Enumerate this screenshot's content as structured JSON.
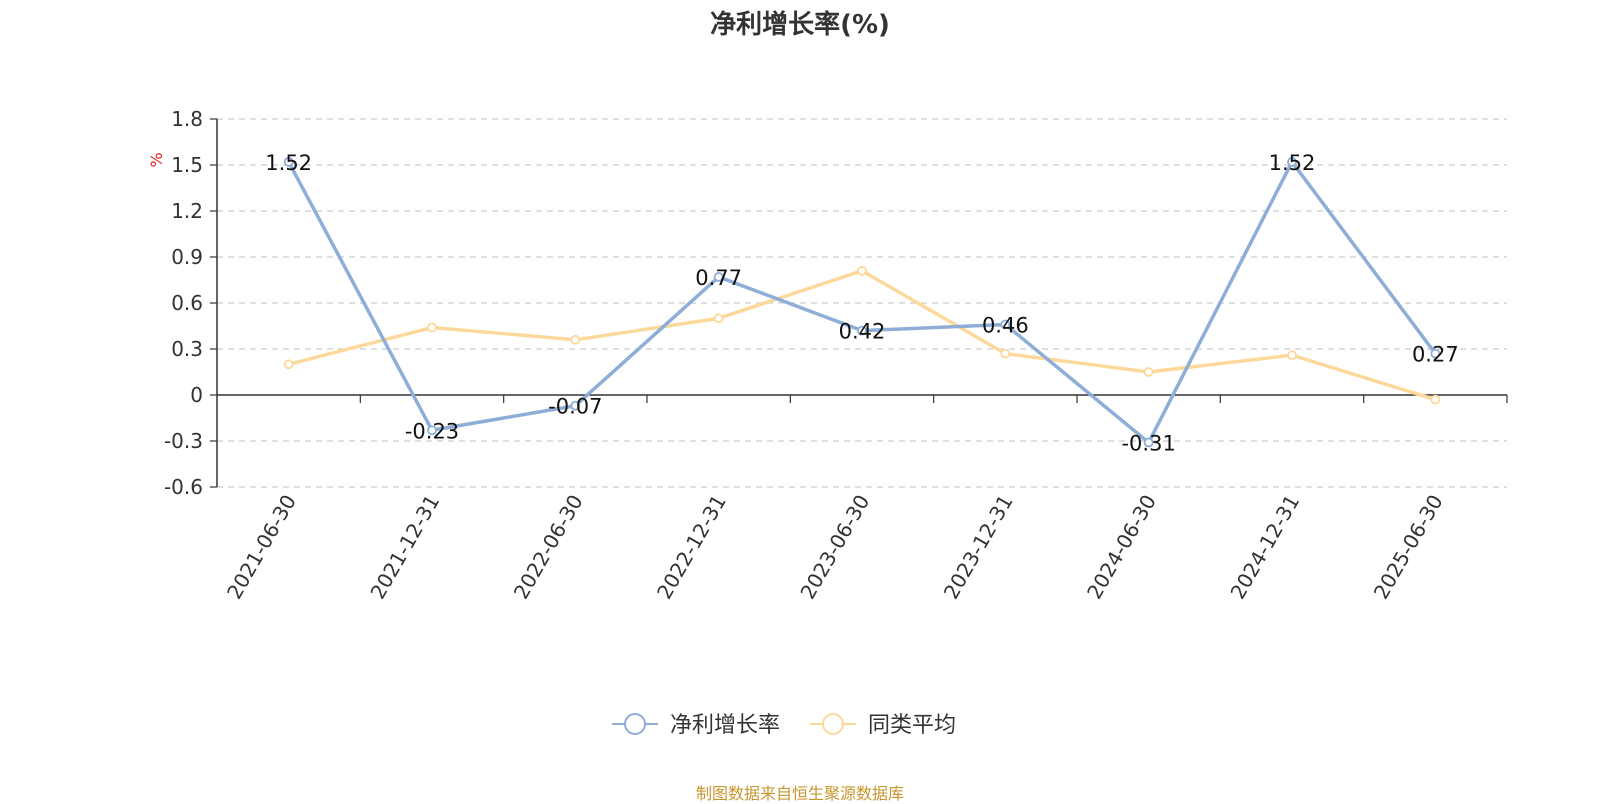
{
  "chart_data": {
    "type": "line",
    "title": "净利增长率(%)",
    "ylabel": "%",
    "categories": [
      "2021-06-30",
      "2021-12-31",
      "2022-06-30",
      "2022-12-31",
      "2023-06-30",
      "2023-12-31",
      "2024-06-30",
      "2024-12-31",
      "2025-06-30"
    ],
    "yticks": [
      "1.8",
      "1.5",
      "1.2",
      "0.9",
      "0.6",
      "0.3",
      "0",
      "-0.3",
      "-0.6"
    ],
    "ylim": [
      -0.6,
      1.8
    ],
    "grid": true,
    "legend_position": "bottom-center",
    "series": [
      {
        "name": "净利增长率",
        "color": "#8eaed8",
        "values": [
          1.52,
          -0.23,
          -0.07,
          0.77,
          0.42,
          0.46,
          -0.31,
          1.52,
          0.27
        ],
        "labels": [
          "1.52",
          "-0.23",
          "-0.07",
          "0.77",
          "0.42",
          "0.46",
          "-0.31",
          "1.52",
          "0.27"
        ]
      },
      {
        "name": "同类平均",
        "color": "#fcd99a",
        "values": [
          0.2,
          0.44,
          0.36,
          0.5,
          0.81,
          0.27,
          0.15,
          0.26,
          -0.03
        ]
      }
    ],
    "source": "制图数据来自恒生聚源数据库"
  }
}
